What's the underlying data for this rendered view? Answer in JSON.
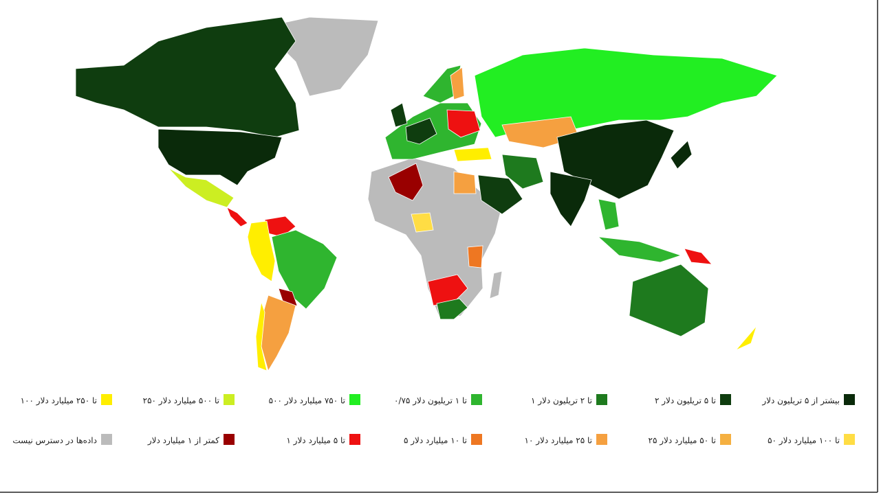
{
  "legend": {
    "items": [
      {
        "label": "بیشتر از ۵ تریلیون دلار",
        "color": "#0a2a0a"
      },
      {
        "label": "۲ تا ۵ تریلیون دلار",
        "color": "#0f3d0f"
      },
      {
        "label": "۱ تا ۲ تریلیون دلار",
        "color": "#1e7a1e"
      },
      {
        "label": "۰/۷۵ تا ۱ تریلیون دلار",
        "color": "#2fb52f"
      },
      {
        "label": "۵۰۰ تا ۷۵۰ میلیارد دلار",
        "color": "#22ee22"
      },
      {
        "label": "۲۵۰ تا ۵۰۰ میلیارد دلار",
        "color": "#ccee22"
      },
      {
        "label": "۱۰۰ تا ۲۵۰ میلیارد دلار",
        "color": "#ffee00"
      },
      {
        "label": "۵۰ تا ۱۰۰ میلیارد دلار",
        "color": "#ffdd44"
      },
      {
        "label": "۲۵ تا ۵۰ میلیارد دلار",
        "color": "#f5b041"
      },
      {
        "label": "۱۰ تا ۲۵ میلیارد دلار",
        "color": "#f5a040"
      },
      {
        "label": "۵ تا ۱۰ میلیارد دلار",
        "color": "#ee7722"
      },
      {
        "label": "۱ تا ۵ میلیارد دلار",
        "color": "#ee1111"
      },
      {
        "label": "کمتر از ۱ میلیارد دلار",
        "color": "#990000"
      },
      {
        "label": "داده‌ها در دسترس نیست",
        "color": "#bbbbbb"
      }
    ]
  }
}
